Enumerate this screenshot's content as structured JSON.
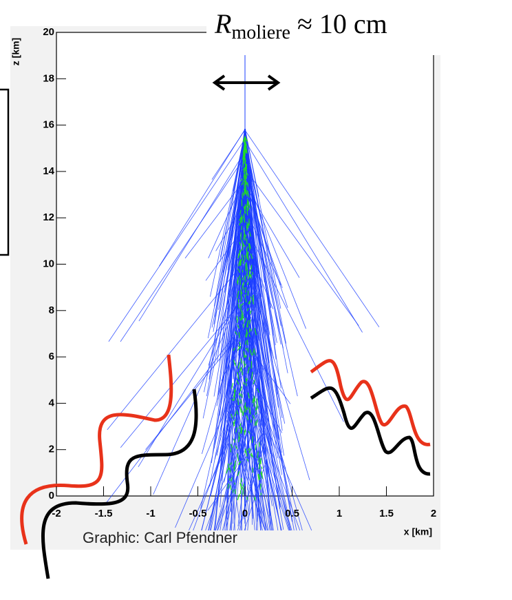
{
  "plot": {
    "x_label": "x [km]",
    "y_label": "z [km]",
    "xlim": [
      -2,
      2
    ],
    "ylim": [
      0,
      20
    ],
    "xticks": [
      -2,
      -1.5,
      -1,
      -0.5,
      0,
      0.5,
      1,
      1.5,
      2
    ],
    "yticks": [
      0,
      2,
      4,
      6,
      8,
      10,
      12,
      14,
      16,
      18,
      20
    ]
  },
  "annotation": {
    "symbol": "R",
    "subscript": "moliere",
    "text": "≈ 10 cm"
  },
  "credit": "Graphic:  Carl Pfendner"
}
